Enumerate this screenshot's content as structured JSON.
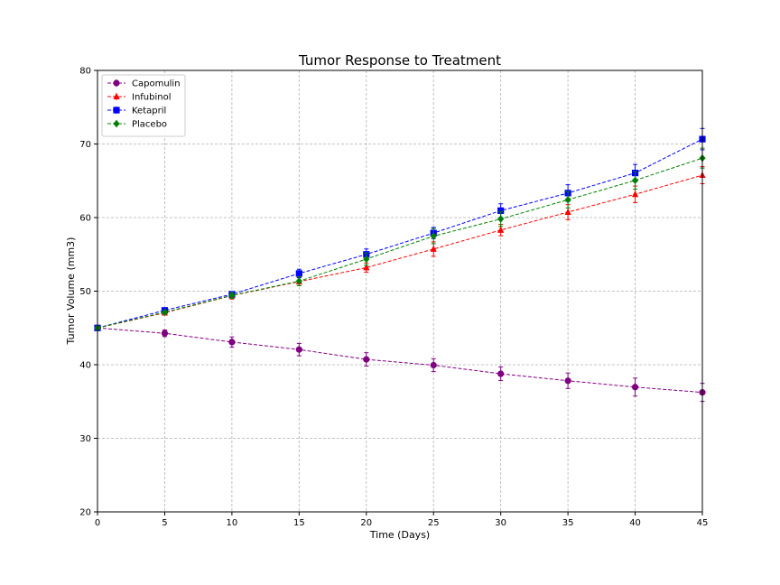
{
  "chart_data": {
    "type": "line",
    "title": "Tumor Response to Treatment",
    "xlabel": "Time (Days)",
    "ylabel": "Tumor Volume (mm3)",
    "xlim": [
      0,
      45
    ],
    "ylim": [
      20,
      80
    ],
    "xticks": [
      0,
      5,
      10,
      15,
      20,
      25,
      30,
      35,
      40,
      45
    ],
    "yticks": [
      20,
      30,
      40,
      50,
      60,
      70,
      80
    ],
    "grid": true,
    "legend_position": "upper-left",
    "x": [
      0,
      5,
      10,
      15,
      20,
      25,
      30,
      35,
      40,
      45
    ],
    "series": [
      {
        "name": "Capomulin",
        "color": "#800080",
        "marker": "circle",
        "values": [
          45.0,
          44.27,
          43.08,
          42.06,
          40.72,
          39.94,
          38.77,
          37.82,
          36.96,
          36.24
        ],
        "errors": [
          0.0,
          0.45,
          0.7,
          0.84,
          0.91,
          0.88,
          0.93,
          1.05,
          1.22,
          1.22
        ]
      },
      {
        "name": "Infubinol",
        "color": "#ff0000",
        "marker": "triangle",
        "values": [
          45.0,
          47.06,
          49.4,
          51.3,
          53.2,
          55.72,
          58.3,
          60.74,
          63.16,
          65.76
        ],
        "errors": [
          0.0,
          0.24,
          0.48,
          0.55,
          0.63,
          0.98,
          0.77,
          1.02,
          1.12,
          1.16
        ]
      },
      {
        "name": "Ketapril",
        "color": "#0000ff",
        "marker": "square",
        "values": [
          45.0,
          47.39,
          49.58,
          52.4,
          55.0,
          57.9,
          60.94,
          63.33,
          66.06,
          70.66
        ],
        "errors": [
          0.0,
          0.26,
          0.36,
          0.58,
          0.73,
          0.76,
          0.93,
          1.13,
          1.16,
          1.45
        ]
      },
      {
        "name": "Placebo",
        "color": "#008000",
        "marker": "diamond",
        "values": [
          45.0,
          47.13,
          49.42,
          51.36,
          54.36,
          57.48,
          59.81,
          62.42,
          65.05,
          68.08
        ],
        "errors": [
          0.0,
          0.22,
          0.4,
          0.61,
          0.84,
          1.03,
          1.02,
          1.11,
          1.2,
          1.35
        ]
      }
    ]
  }
}
